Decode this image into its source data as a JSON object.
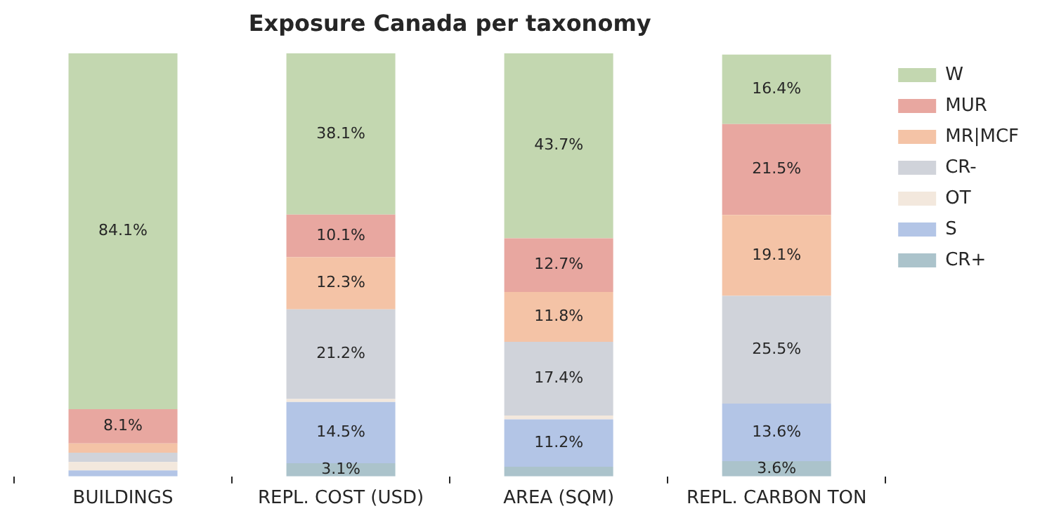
{
  "chart_data": {
    "type": "bar",
    "title": "Exposure Canada per taxonomy",
    "stacked": true,
    "legend": "top right",
    "ylim": [
      0,
      100
    ],
    "categories": [
      "BUILDINGS",
      "REPL. COST (USD)",
      "AREA (SQM)",
      "REPL. CARBON TON"
    ],
    "series": [
      {
        "name": "CR+",
        "color": "#abc3cb",
        "values": [
          0,
          3.1,
          2.3,
          3.6
        ],
        "value_labels": [
          null,
          "3.1%",
          null,
          "3.6%"
        ]
      },
      {
        "name": "S",
        "color": "#b3c5e6",
        "values": [
          1.4,
          14.5,
          11.2,
          13.6
        ],
        "value_labels": [
          null,
          "14.5%",
          "11.2%",
          "13.6%"
        ]
      },
      {
        "name": "OT",
        "color": "#f3e8dd",
        "values": [
          2.0,
          0.7,
          0.9,
          null
        ],
        "value_labels": [
          null,
          null,
          null,
          null
        ]
      },
      {
        "name": "CR-",
        "color": "#d0d3da",
        "values": [
          2.2,
          21.2,
          17.4,
          25.5
        ],
        "value_labels": [
          null,
          "21.2%",
          "17.4%",
          "25.5%"
        ]
      },
      {
        "name": "MR|MCF",
        "color": "#f4c3a6",
        "values": [
          2.2,
          12.3,
          11.8,
          19.1
        ],
        "value_labels": [
          null,
          "12.3%",
          "11.8%",
          "19.1%"
        ]
      },
      {
        "name": "MUR",
        "color": "#e8a7a0",
        "values": [
          8.1,
          10.1,
          12.7,
          21.5
        ],
        "value_labels": [
          "8.1%",
          "10.1%",
          "12.7%",
          "21.5%"
        ]
      },
      {
        "name": "W",
        "color": "#c3d7b0",
        "values": [
          84.1,
          38.1,
          43.7,
          16.4
        ],
        "value_labels": [
          "84.1%",
          "38.1%",
          "43.7%",
          "16.4%"
        ]
      }
    ]
  }
}
